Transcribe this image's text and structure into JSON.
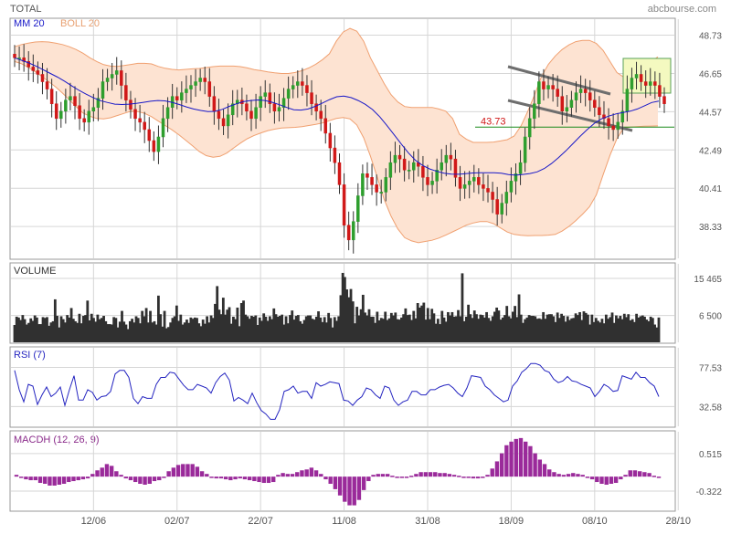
{
  "header": {
    "title": "TOTAL",
    "brand": "abcbourse.com"
  },
  "colors": {
    "panel_border": "#999999",
    "grid": "#d6d6d6",
    "boll_fill": "#fde3d2",
    "boll_line": "#f0a070",
    "ma_line": "#1818c8",
    "candle_up": "#2e9e2e",
    "candle_down": "#d01818",
    "volume_bar": "#303030",
    "rsi_line": "#2424c0",
    "macd_bar": "#9a2a9a",
    "support_line": "#1a8a1a",
    "support_label": "#d01818",
    "trend_line": "#6e6e6e",
    "highlight_fill": "#f4f9c0",
    "highlight_stroke": "#58a058",
    "macd_label": "#8a2a8a"
  },
  "chart_data": [
    {
      "type": "candlestick",
      "legend": [
        "MM 20",
        "BOLL 20"
      ],
      "ylim": [
        36.6,
        49.6
      ],
      "y_ticks": [
        48.73,
        46.65,
        44.57,
        42.49,
        40.41,
        38.33
      ],
      "x_labels": [
        {
          "label": "12/06",
          "index": 17
        },
        {
          "label": "02/07",
          "index": 35
        },
        {
          "label": "22/07",
          "index": 53
        },
        {
          "label": "11/08",
          "index": 71
        },
        {
          "label": "31/08",
          "index": 89
        },
        {
          "label": "18/09",
          "index": 107
        },
        {
          "label": "08/10",
          "index": 125
        },
        {
          "label": "28/10",
          "index": 143
        }
      ],
      "annotation": {
        "label": "43.73",
        "value": 43.73
      },
      "close": [
        47.5,
        47.5,
        47.3,
        47.0,
        46.8,
        46.6,
        46.2,
        45.8,
        45.0,
        44.2,
        44.6,
        45.2,
        45.4,
        44.9,
        44.2,
        44.0,
        44.6,
        44.8,
        45.3,
        46.2,
        46.4,
        46.6,
        46.8,
        46.0,
        45.2,
        44.7,
        44.2,
        44.0,
        43.6,
        43.0,
        42.4,
        43.2,
        44.2,
        44.8,
        45.4,
        45.2,
        45.6,
        45.8,
        46.0,
        46.2,
        46.4,
        46.2,
        45.4,
        44.6,
        44.2,
        43.8,
        44.4,
        45.0,
        45.2,
        45.0,
        44.6,
        44.2,
        44.8,
        45.4,
        45.6,
        45.0,
        44.6,
        44.8,
        45.3,
        45.8,
        46.0,
        46.2,
        46.0,
        45.6,
        45.0,
        44.6,
        44.2,
        43.4,
        42.6,
        41.8,
        40.6,
        38.4,
        37.6,
        38.6,
        40.0,
        41.2,
        41.0,
        40.6,
        40.2,
        40.2,
        41.0,
        41.8,
        42.2,
        42.0,
        41.4,
        41.4,
        41.8,
        41.6,
        41.0,
        40.6,
        40.8,
        41.4,
        41.8,
        42.2,
        42.0,
        41.0,
        40.4,
        40.6,
        40.8,
        41.0,
        40.6,
        40.4,
        40.2,
        39.8,
        39.0,
        39.6,
        40.2,
        40.8,
        41.2,
        41.8,
        43.2,
        44.2,
        45.0,
        46.2,
        45.8,
        46.0,
        45.8,
        45.4,
        44.6,
        44.8,
        45.2,
        45.6,
        45.8,
        45.6,
        45.2,
        44.8,
        44.4,
        44.2,
        43.8,
        43.6,
        44.0,
        44.6,
        45.8,
        46.4,
        46.6,
        46.2,
        46.0,
        46.2,
        46.0,
        45.4,
        45.0
      ],
      "ma20": [
        47.5,
        47.36,
        47.22,
        47.05,
        46.85,
        46.65,
        46.45,
        46.22,
        45.97,
        45.73,
        45.52,
        45.33,
        45.17,
        45.07,
        44.98,
        44.96,
        44.98,
        45.02,
        45.08,
        45.14,
        45.18,
        45.16,
        45.08,
        44.96,
        44.83,
        44.72,
        44.64,
        44.58,
        44.59,
        44.7,
        44.86,
        45.0,
        45.12,
        45.18,
        45.21,
        45.18,
        45.08,
        44.95,
        44.8,
        44.68,
        44.66,
        44.72,
        44.86,
        45.04,
        45.23,
        45.38,
        45.42,
        45.34,
        45.18,
        44.97,
        44.69,
        44.3,
        43.83,
        43.33,
        42.82,
        42.34,
        41.93,
        41.65,
        41.46,
        41.33,
        41.23,
        41.18,
        41.17,
        41.2,
        41.24,
        41.25,
        41.25,
        41.25,
        41.23,
        41.15,
        41.12,
        41.16,
        41.21,
        41.3,
        41.48,
        41.75,
        42.08,
        42.44,
        42.83,
        43.23,
        43.6,
        43.94,
        44.18,
        44.33,
        44.45,
        44.53,
        44.6,
        44.72,
        44.89,
        45.07,
        45.15
      ],
      "boll_upper": [
        48.1,
        48.22,
        48.3,
        48.36,
        48.38,
        48.36,
        48.3,
        48.22,
        48.1,
        47.95,
        47.75,
        47.5,
        47.3,
        47.13,
        47.05,
        47.03,
        47.08,
        47.14,
        47.2,
        47.2,
        47.17,
        47.03,
        46.93,
        46.87,
        46.84,
        46.87,
        46.9,
        46.92,
        46.97,
        47.02,
        47.05,
        47.05,
        47.05,
        47.02,
        46.95,
        46.86,
        46.8,
        46.73,
        46.68,
        46.65,
        46.65,
        46.7,
        46.8,
        46.95,
        47.15,
        47.4,
        47.72,
        48.4,
        48.9,
        49.1,
        48.95,
        48.4,
        47.5,
        46.8,
        46.1,
        45.5,
        45.1,
        44.85,
        44.8,
        44.8,
        44.8,
        44.8,
        44.72,
        44.6,
        44.2,
        43.35,
        43.08,
        42.9,
        42.9,
        42.9,
        42.92,
        42.98,
        43.05,
        43.25,
        43.8,
        44.6,
        45.5,
        46.5,
        47.15,
        47.6,
        47.95,
        48.2,
        48.38,
        48.45,
        48.45,
        48.28,
        47.9,
        47.3,
        46.7,
        46.45,
        46.55,
        46.78,
        47.0,
        47.3,
        47.55
      ],
      "boll_lower": [
        47.3,
        47.18,
        46.98,
        46.74,
        46.48,
        46.2,
        45.92,
        45.58,
        45.22,
        44.84,
        44.5,
        44.32,
        44.2,
        44.18,
        44.24,
        44.36,
        44.48,
        44.6,
        44.58,
        44.48,
        44.3,
        44.06,
        43.82,
        43.58,
        43.32,
        43.02,
        42.72,
        42.4,
        42.18,
        42.1,
        42.14,
        42.32,
        42.6,
        42.86,
        43.1,
        43.28,
        43.42,
        43.54,
        43.62,
        43.68,
        43.7,
        43.72,
        43.76,
        43.82,
        43.88,
        43.96,
        44.08,
        44.2,
        44.25,
        44.18,
        43.85,
        43.15,
        42.15,
        41.0,
        39.8,
        38.9,
        38.2,
        37.72,
        37.55,
        37.45,
        37.52,
        37.58,
        37.7,
        37.86,
        38.04,
        38.22,
        38.4,
        38.52,
        38.6,
        38.6,
        38.48,
        38.25,
        38.03,
        37.9,
        37.85,
        37.83,
        37.84,
        37.84,
        37.86,
        37.9,
        38.08,
        38.33,
        38.65,
        39.0,
        39.4,
        40.05,
        41.15,
        42.2,
        43.1,
        43.68,
        43.73,
        43.76,
        43.78,
        43.79,
        43.8
      ]
    },
    {
      "type": "bar",
      "title": "VOLUME",
      "y_ticks": [
        "15 465",
        "6 500"
      ],
      "ylim": [
        0,
        19000
      ],
      "values": [
        4200,
        6200,
        6000,
        5400,
        6600,
        5600,
        4300,
        4700,
        5800,
        5200,
        6500,
        6000,
        4400,
        4400,
        6100,
        5900,
        6100,
        4000,
        4800,
        5100,
        10400,
        6400,
        3600,
        6300,
        5600,
        4800,
        6600,
        6000,
        8300,
        5700,
        5100,
        4700,
        6900,
        4600,
        6400,
        6600,
        10100,
        5300,
        6900,
        5900,
        5000,
        6700,
        5600,
        5900,
        6400,
        5100,
        4400,
        4400,
        4300,
        6100,
        5900,
        3600,
        5000,
        7600,
        5000,
        4300,
        3200,
        5100,
        5700,
        4800,
        6300,
        5900,
        4600,
        7600,
        6300,
        8300,
        4800,
        7600,
        4800,
        5100,
        4300,
        11300,
        6800,
        3800,
        7600,
        3400,
        3700,
        4800,
        5900,
        6300,
        8900,
        5200,
        6700,
        4300,
        4800,
        5500,
        4700,
        6000,
        5700,
        6000,
        5900,
        4600,
        3900,
        5500,
        4500,
        6300,
        4800,
        6500,
        5900,
        9300,
        13600,
        7900,
        6800,
        10800,
        6700,
        7900,
        8500,
        4500,
        6200,
        5600,
        8400,
        3900,
        9500,
        10100,
        6700,
        6300,
        5700,
        6400,
        6200,
        6500,
        4200,
        6000,
        5200,
        7000,
        6200,
        5200,
        6300,
        5600,
        8200,
        6800,
        6200,
        6400,
        6700,
        4300,
        6300,
        4600,
        6600,
        7700,
        5500,
        6400,
        6600,
        5100,
        4500,
        5400,
        6300,
        6500,
        6500,
        5700,
        5500,
        6200,
        7500,
        6000,
        4900,
        6100,
        4800,
        7100,
        5900,
        3600,
        6100,
        5200,
        6300,
        11400,
        16800,
        15800,
        12800,
        10900,
        12900,
        9900,
        4600,
        8600,
        6500,
        8000,
        11500,
        7200,
        6500,
        8000,
        6200,
        6200,
        4700,
        7400,
        5300,
        5900,
        5700,
        7400,
        5400,
        5800,
        7100,
        6500,
        7200,
        5600,
        5500,
        6000,
        6800,
        8200,
        6600,
        6700,
        5400,
        7600,
        5800,
        9500,
        8400,
        8900,
        9600,
        5500,
        8300,
        5600,
        8100,
        7000,
        4500,
        5700,
        4400,
        7600,
        6000,
        5000,
        7300,
        6500,
        7300,
        6200,
        6300,
        7800,
        6300,
        16700,
        5100,
        6200,
        9100,
        6800,
        5900,
        7700,
        6800,
        5700,
        6700,
        6600,
        6000,
        7300,
        5900,
        5200,
        6300,
        7400,
        8400,
        7700,
        5500,
        6000,
        6600,
        8800,
        6300,
        5800,
        7400,
        8800,
        6100,
        11600,
        6700,
        4700,
        5600,
        6000,
        6600,
        6400,
        6400,
        6300,
        5700,
        5800,
        5600,
        7300,
        5700,
        6700,
        6800,
        6800,
        6300,
        4900,
        7200,
        5900,
        6900,
        6400,
        5000,
        6300,
        5400,
        5800,
        5900,
        7000,
        6600,
        7300,
        5400,
        7500,
        7100,
        6700,
        4300,
        6700,
        4900,
        5900,
        5200,
        4800,
        5700,
        4600,
        6700,
        5700,
        6100,
        7200,
        4700,
        6500,
        5800,
        6400,
        5600,
        6900,
        6100,
        6800,
        5300,
        5600,
        4900,
        6900,
        6000,
        6300,
        6500,
        6200,
        5500,
        5100,
        6200,
        5900,
        4300,
        3600,
        6000
      ]
    },
    {
      "type": "line",
      "title": "RSI (7)",
      "y_ticks": [
        77.53,
        32.58
      ],
      "ylim": [
        10,
        100
      ],
      "values": [
        74,
        52,
        38,
        58,
        56,
        35,
        46,
        55,
        44,
        48,
        55,
        34,
        52,
        68,
        40,
        40,
        52,
        49,
        40,
        44,
        45,
        50,
        70,
        74,
        74,
        66,
        42,
        36,
        44,
        42,
        42,
        58,
        66,
        66,
        72,
        71,
        64,
        57,
        52,
        52,
        58,
        56,
        54,
        48,
        60,
        67,
        71,
        63,
        39,
        43,
        40,
        36,
        48,
        37,
        28,
        24,
        18,
        18,
        29,
        50,
        52,
        56,
        48,
        50,
        50,
        42,
        60,
        56,
        58,
        61,
        60,
        59,
        40,
        39,
        34,
        40,
        44,
        54,
        52,
        46,
        42,
        56,
        54,
        40,
        34,
        38,
        40,
        50,
        50,
        46,
        46,
        52,
        52,
        55,
        57,
        58,
        54,
        48,
        44,
        54,
        68,
        67,
        66,
        56,
        52,
        46,
        42,
        38,
        40,
        56,
        62,
        72,
        76,
        82,
        82,
        80,
        74,
        72,
        64,
        60,
        62,
        67,
        62,
        61,
        58,
        56,
        54,
        44,
        50,
        58,
        55,
        50,
        51,
        68,
        66,
        64,
        72,
        66,
        66,
        60,
        56,
        44
      ]
    },
    {
      "type": "bar",
      "title": "MACDH (12, 26, 9)",
      "y_ticks": [
        0.515,
        -0.322
      ],
      "ylim": [
        -0.75,
        1.0
      ],
      "values": [
        0.04,
        -0.02,
        -0.06,
        -0.08,
        -0.08,
        -0.14,
        -0.16,
        -0.2,
        -0.2,
        -0.18,
        -0.16,
        -0.12,
        -0.1,
        -0.08,
        -0.06,
        -0.04,
        0.06,
        0.14,
        0.2,
        0.28,
        0.24,
        0.12,
        0.04,
        -0.04,
        -0.08,
        -0.12,
        -0.16,
        -0.18,
        -0.16,
        -0.1,
        -0.08,
        0.0,
        0.12,
        0.2,
        0.26,
        0.28,
        0.28,
        0.28,
        0.22,
        0.12,
        0.06,
        0.0,
        -0.04,
        -0.04,
        -0.06,
        -0.08,
        -0.06,
        -0.04,
        -0.06,
        -0.08,
        -0.1,
        -0.12,
        -0.14,
        -0.14,
        -0.12,
        0.04,
        0.08,
        0.06,
        0.06,
        0.1,
        0.14,
        0.16,
        0.2,
        0.14,
        0.06,
        -0.06,
        -0.16,
        -0.28,
        -0.42,
        -0.56,
        -0.64,
        -0.64,
        -0.52,
        -0.3,
        -0.1,
        0.04,
        0.06,
        0.06,
        0.06,
        0.02,
        0.0,
        0.0,
        0.0,
        0.02,
        0.06,
        0.1,
        0.1,
        0.1,
        0.1,
        0.08,
        0.08,
        0.06,
        0.04,
        0.02,
        0.0,
        -0.02,
        -0.04,
        -0.04,
        -0.02,
        0.04,
        0.18,
        0.34,
        0.52,
        0.7,
        0.78,
        0.84,
        0.86,
        0.78,
        0.68,
        0.52,
        0.38,
        0.28,
        0.16,
        0.1,
        0.06,
        0.04,
        0.06,
        0.08,
        0.06,
        0.04,
        0.0,
        -0.06,
        -0.12,
        -0.16,
        -0.18,
        -0.16,
        -0.14,
        -0.06,
        0.04,
        0.14,
        0.14,
        0.12,
        0.1,
        0.08,
        0.02,
        0.0
      ]
    }
  ]
}
